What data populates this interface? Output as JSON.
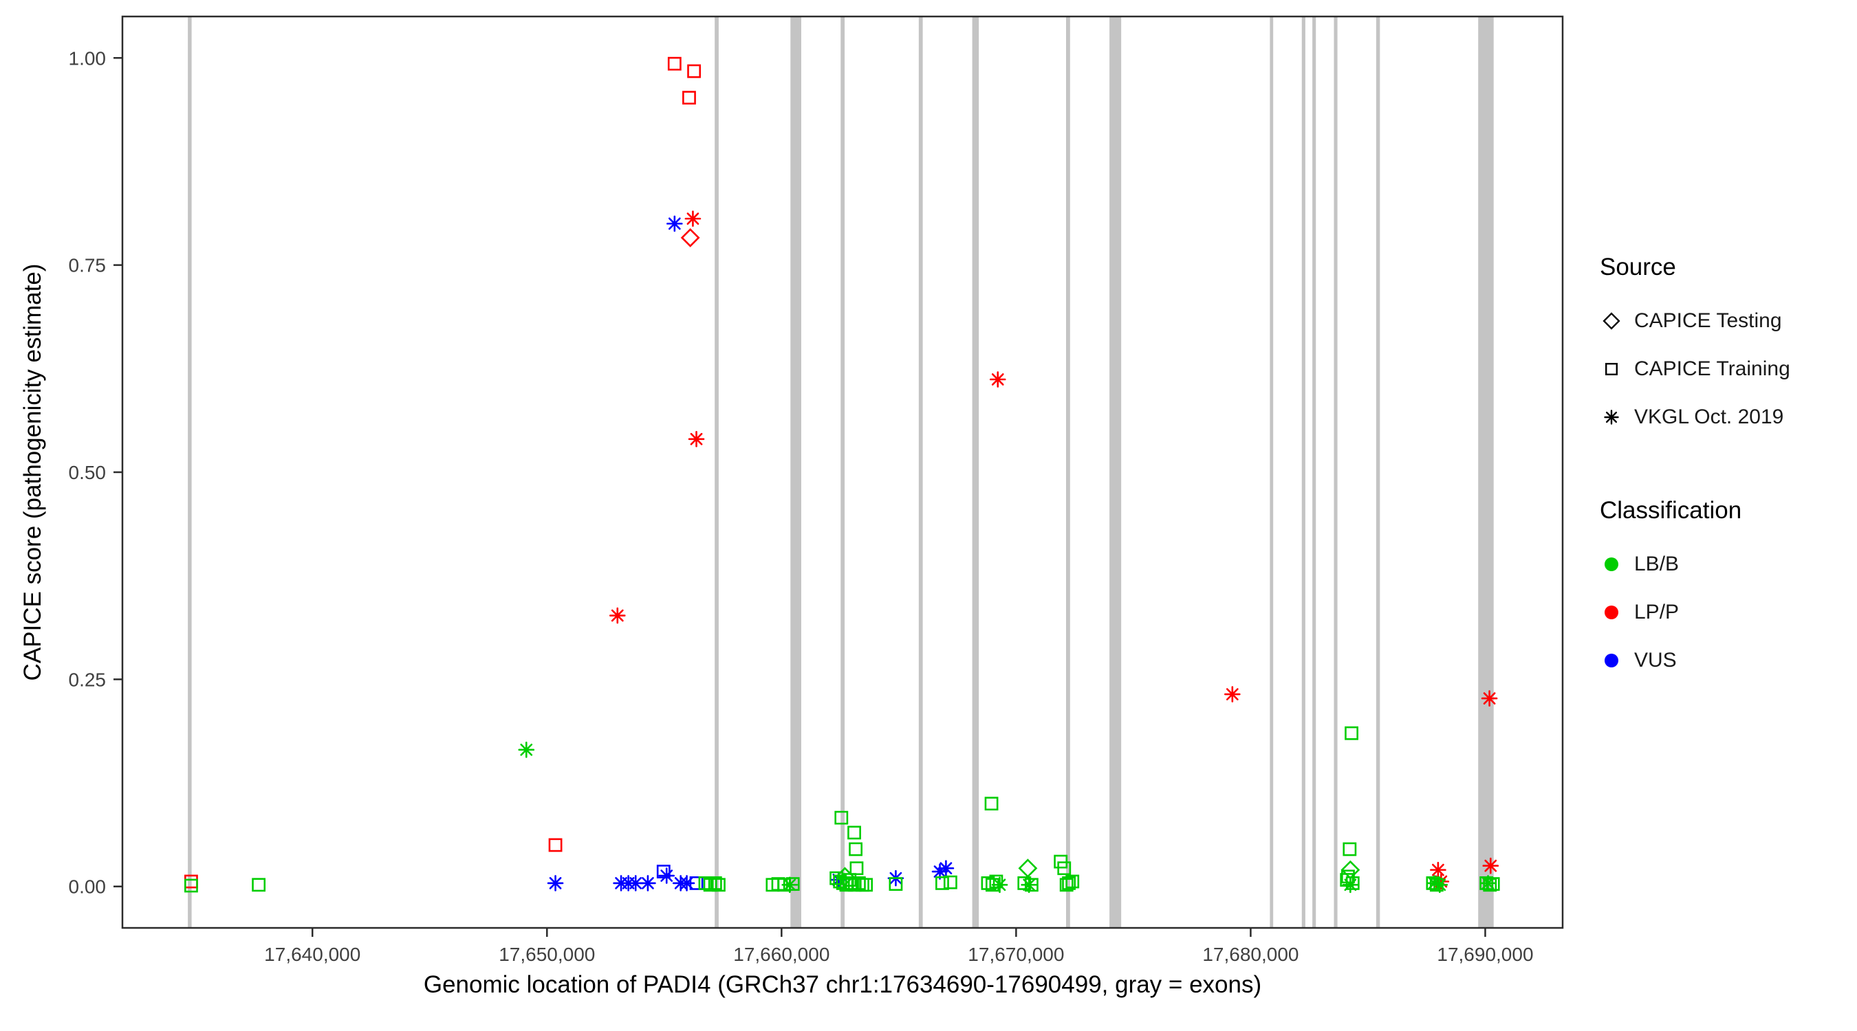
{
  "figure": {
    "background": "#FFFFFF"
  },
  "chart_data": {
    "type": "scatter",
    "title": "",
    "xlabel": "Genomic location of PADI4 (GRCh37 chr1:17634690-17690499, gray = exons)",
    "ylabel": "CAPICE score (pathogenicity estimate)",
    "x_range": [
      17631900,
      17693300
    ],
    "y_range": [
      -0.05,
      1.05
    ],
    "grid": "off",
    "x_ticks": [
      {
        "value": 17640000,
        "label": "17,640,000"
      },
      {
        "value": 17650000,
        "label": "17,650,000"
      },
      {
        "value": 17660000,
        "label": "17,660,000"
      },
      {
        "value": 17670000,
        "label": "17,670,000"
      },
      {
        "value": 17680000,
        "label": "17,680,000"
      },
      {
        "value": 17690000,
        "label": "17,690,000"
      }
    ],
    "y_ticks": [
      {
        "value": 0.0,
        "label": "0.00"
      },
      {
        "value": 0.25,
        "label": "0.25"
      },
      {
        "value": 0.5,
        "label": "0.50"
      },
      {
        "value": 0.75,
        "label": "0.75"
      },
      {
        "value": 1.0,
        "label": "1.00"
      }
    ],
    "exon_color": "#C4C4C4",
    "exons": [
      [
        17634690,
        17634850
      ],
      [
        17657150,
        17657320
      ],
      [
        17660380,
        17660840
      ],
      [
        17662520,
        17662690
      ],
      [
        17665850,
        17666020
      ],
      [
        17668130,
        17668410
      ],
      [
        17672130,
        17672300
      ],
      [
        17673980,
        17674480
      ],
      [
        17680820,
        17680960
      ],
      [
        17682180,
        17682330
      ],
      [
        17682630,
        17682780
      ],
      [
        17683550,
        17683700
      ],
      [
        17685350,
        17685510
      ],
      [
        17689700,
        17690360
      ]
    ],
    "shape_by_source": {
      "testing": "diamond",
      "training": "square",
      "vkgl": "asterisk"
    },
    "color_by_class": {
      "LB/B": "#00CD00",
      "LP/P": "#FF0000",
      "VUS": "#0000FF"
    },
    "point_format": [
      "genomic_position",
      "capice_score",
      "source",
      "classification"
    ],
    "points": [
      [
        17655440,
        0.993,
        "training",
        "LP/P"
      ],
      [
        17656270,
        0.984,
        "training",
        "LP/P"
      ],
      [
        17656060,
        0.952,
        "training",
        "LP/P"
      ],
      [
        17650360,
        0.05,
        "training",
        "LP/P"
      ],
      [
        17634830,
        0.006,
        "training",
        "LP/P"
      ],
      [
        17656110,
        0.783,
        "testing",
        "LP/P"
      ],
      [
        17656220,
        0.806,
        "vkgl",
        "LP/P"
      ],
      [
        17656370,
        0.54,
        "vkgl",
        "LP/P"
      ],
      [
        17653005,
        0.327,
        "vkgl",
        "LP/P"
      ],
      [
        17669220,
        0.612,
        "vkgl",
        "LP/P"
      ],
      [
        17679220,
        0.232,
        "vkgl",
        "LP/P"
      ],
      [
        17690180,
        0.227,
        "vkgl",
        "LP/P"
      ],
      [
        17687990,
        0.02,
        "vkgl",
        "LP/P"
      ],
      [
        17688120,
        0.006,
        "vkgl",
        "LP/P"
      ],
      [
        17690230,
        0.025,
        "vkgl",
        "LP/P"
      ],
      [
        17655440,
        0.8,
        "vkgl",
        "VUS"
      ],
      [
        17654970,
        0.018,
        "training",
        "VUS"
      ],
      [
        17656370,
        0.004,
        "training",
        "VUS"
      ],
      [
        17650360,
        0.004,
        "vkgl",
        "VUS"
      ],
      [
        17653160,
        0.004,
        "vkgl",
        "VUS"
      ],
      [
        17653470,
        0.004,
        "vkgl",
        "VUS"
      ],
      [
        17653780,
        0.004,
        "vkgl",
        "VUS"
      ],
      [
        17654300,
        0.004,
        "vkgl",
        "VUS"
      ],
      [
        17655100,
        0.013,
        "vkgl",
        "VUS"
      ],
      [
        17655700,
        0.004,
        "vkgl",
        "VUS"
      ],
      [
        17655960,
        0.004,
        "vkgl",
        "VUS"
      ],
      [
        17662435,
        0.008,
        "vkgl",
        "VUS"
      ],
      [
        17664870,
        0.01,
        "vkgl",
        "VUS"
      ],
      [
        17666750,
        0.018,
        "vkgl",
        "VUS"
      ],
      [
        17667010,
        0.022,
        "vkgl",
        "VUS"
      ],
      [
        17634830,
        0.001,
        "training",
        "LB/B"
      ],
      [
        17637710,
        0.002,
        "training",
        "LB/B"
      ],
      [
        17649120,
        0.165,
        "vkgl",
        "LB/B"
      ],
      [
        17656750,
        0.004,
        "training",
        "LB/B"
      ],
      [
        17656960,
        0.002,
        "training",
        "LB/B"
      ],
      [
        17657170,
        0.004,
        "training",
        "LB/B"
      ],
      [
        17657320,
        0.002,
        "training",
        "LB/B"
      ],
      [
        17659620,
        0.002,
        "training",
        "LB/B"
      ],
      [
        17659860,
        0.003,
        "training",
        "LB/B"
      ],
      [
        17660110,
        0.002,
        "training",
        "LB/B"
      ],
      [
        17660350,
        0.002,
        "vkgl",
        "LB/B"
      ],
      [
        17660480,
        0.003,
        "training",
        "LB/B"
      ],
      [
        17662550,
        0.083,
        "training",
        "LB/B"
      ],
      [
        17663100,
        0.065,
        "training",
        "LB/B"
      ],
      [
        17663160,
        0.045,
        "training",
        "LB/B"
      ],
      [
        17663200,
        0.022,
        "training",
        "LB/B"
      ],
      [
        17662700,
        0.012,
        "testing",
        "LB/B"
      ],
      [
        17662340,
        0.01,
        "training",
        "LB/B"
      ],
      [
        17662490,
        0.006,
        "training",
        "LB/B"
      ],
      [
        17662620,
        0.004,
        "training",
        "LB/B"
      ],
      [
        17662760,
        0.002,
        "training",
        "LB/B"
      ],
      [
        17662900,
        0.008,
        "training",
        "LB/B"
      ],
      [
        17663010,
        0.004,
        "training",
        "LB/B"
      ],
      [
        17663120,
        0.002,
        "training",
        "LB/B"
      ],
      [
        17663300,
        0.004,
        "training",
        "LB/B"
      ],
      [
        17663450,
        0.002,
        "training",
        "LB/B"
      ],
      [
        17663600,
        0.002,
        "training",
        "LB/B"
      ],
      [
        17664870,
        0.003,
        "training",
        "LB/B"
      ],
      [
        17666850,
        0.004,
        "training",
        "LB/B"
      ],
      [
        17667200,
        0.005,
        "training",
        "LB/B"
      ],
      [
        17668950,
        0.1,
        "training",
        "LB/B"
      ],
      [
        17668800,
        0.004,
        "training",
        "LB/B"
      ],
      [
        17668990,
        0.002,
        "training",
        "LB/B"
      ],
      [
        17669150,
        0.006,
        "training",
        "LB/B"
      ],
      [
        17669300,
        0.002,
        "vkgl",
        "LB/B"
      ],
      [
        17670350,
        0.004,
        "training",
        "LB/B"
      ],
      [
        17670500,
        0.022,
        "testing",
        "LB/B"
      ],
      [
        17670660,
        0.002,
        "training",
        "LB/B"
      ],
      [
        17670550,
        0.002,
        "vkgl",
        "LB/B"
      ],
      [
        17671900,
        0.03,
        "training",
        "LB/B"
      ],
      [
        17672050,
        0.022,
        "training",
        "LB/B"
      ],
      [
        17672150,
        0.002,
        "training",
        "LB/B"
      ],
      [
        17672250,
        0.004,
        "training",
        "LB/B"
      ],
      [
        17672400,
        0.006,
        "training",
        "LB/B"
      ],
      [
        17684300,
        0.185,
        "training",
        "LB/B"
      ],
      [
        17684220,
        0.045,
        "training",
        "LB/B"
      ],
      [
        17684250,
        0.02,
        "testing",
        "LB/B"
      ],
      [
        17684150,
        0.012,
        "training",
        "LB/B"
      ],
      [
        17684100,
        0.008,
        "training",
        "LB/B"
      ],
      [
        17684350,
        0.004,
        "training",
        "LB/B"
      ],
      [
        17684250,
        0.002,
        "vkgl",
        "LB/B"
      ],
      [
        17687770,
        0.004,
        "training",
        "LB/B"
      ],
      [
        17687930,
        0.002,
        "training",
        "LB/B"
      ],
      [
        17687830,
        0.004,
        "vkgl",
        "LB/B"
      ],
      [
        17688060,
        0.002,
        "vkgl",
        "LB/B"
      ],
      [
        17690050,
        0.004,
        "training",
        "LB/B"
      ],
      [
        17690200,
        0.002,
        "training",
        "LB/B"
      ],
      [
        17690330,
        0.003,
        "training",
        "LB/B"
      ],
      [
        17690120,
        0.004,
        "vkgl",
        "LB/B"
      ]
    ]
  },
  "legend": {
    "source": {
      "title": "Source",
      "items": [
        {
          "label": "CAPICE Testing",
          "shape": "diamond"
        },
        {
          "label": "CAPICE Training",
          "shape": "square"
        },
        {
          "label": "VKGL Oct. 2019",
          "shape": "asterisk"
        }
      ]
    },
    "classification": {
      "title": "Classification",
      "items": [
        {
          "label": "LB/B",
          "color": "#00CD00"
        },
        {
          "label": "LP/P",
          "color": "#FF0000"
        },
        {
          "label": "VUS",
          "color": "#0000FF"
        }
      ]
    }
  }
}
